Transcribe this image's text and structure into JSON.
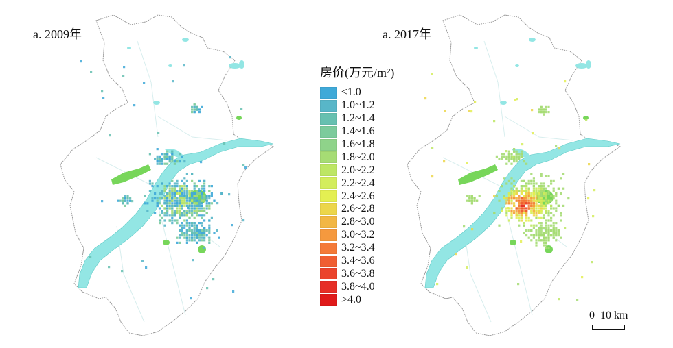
{
  "panels": [
    {
      "title": "a. 2009年",
      "year": "2009"
    },
    {
      "title": "a. 2017年",
      "year": "2017"
    }
  ],
  "legend": {
    "title": "房价(万元/m²)",
    "items": [
      {
        "label": "≤1.0",
        "color": "#3fa9d8"
      },
      {
        "label": "1.0~1.2",
        "color": "#58b6c8"
      },
      {
        "label": "1.2~1.4",
        "color": "#66c0b0"
      },
      {
        "label": "1.4~1.6",
        "color": "#7ccb9c"
      },
      {
        "label": "1.6~1.8",
        "color": "#8fd38a"
      },
      {
        "label": "1.8~2.0",
        "color": "#a6dc74"
      },
      {
        "label": "2.0~2.2",
        "color": "#bde664"
      },
      {
        "label": "2.2~2.4",
        "color": "#d3ed5c"
      },
      {
        "label": "2.4~2.6",
        "color": "#e4ef52"
      },
      {
        "label": "2.6~2.8",
        "color": "#ecd64a"
      },
      {
        "label": "2.8~3.0",
        "color": "#f2b744"
      },
      {
        "label": "3.0~3.2",
        "color": "#f5993e"
      },
      {
        "label": "3.2~3.4",
        "color": "#f47a38"
      },
      {
        "label": "3.4~3.6",
        "color": "#f05e32"
      },
      {
        "label": "3.6~3.8",
        "color": "#eb442c"
      },
      {
        "label": "3.8~4.0",
        "color": "#e62e26"
      },
      {
        "label": ">4.0",
        "color": "#e01a1a"
      }
    ]
  },
  "scale": {
    "zero": "0",
    "distance": "10 km"
  },
  "colors": {
    "water": "#93e6e4",
    "boundary": "#999999",
    "road": "#d8eeee",
    "park": "#77d65a"
  }
}
